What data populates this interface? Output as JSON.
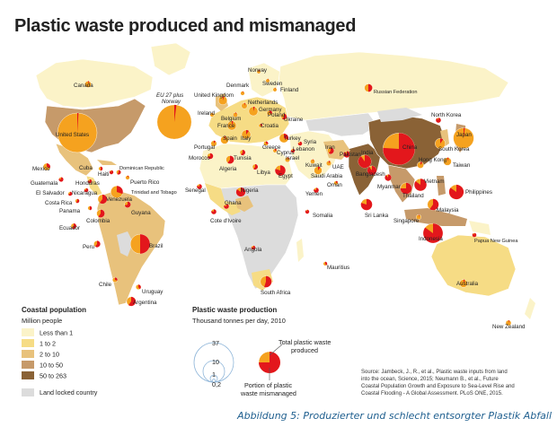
{
  "title": "Plastic waste produced and mismanaged",
  "caption": "Abbildung 5: Produzierter und schlecht entsorgter Plastik Abfall",
  "colors": {
    "less_than_1": "#fbf3c8",
    "one_to_2": "#f6dc85",
    "two_to_10": "#e8c27c",
    "ten_to_50": "#c69a6a",
    "fifty_to_263": "#8a6236",
    "land_locked": "#dcdcdc",
    "ocean": "#ffffff",
    "total_waste": "#f5a21f",
    "mismanaged": "#e3171c"
  },
  "legend": {
    "coastal_title": "Coastal population",
    "coastal_unit": "Million people",
    "items": [
      {
        "label": "Less than 1",
        "color_key": "less_than_1"
      },
      {
        "label": "1 to 2",
        "color_key": "one_to_2"
      },
      {
        "label": "2 to 10",
        "color_key": "two_to_10"
      },
      {
        "label": "10 to 50",
        "color_key": "ten_to_50"
      },
      {
        "label": "50 to 263",
        "color_key": "fifty_to_263"
      }
    ],
    "landlocked_label": "Land locked country",
    "waste_title": "Plastic waste production",
    "waste_unit": "Thousand tonnes per day, 2010",
    "scale_values": [
      "37",
      "10",
      "1",
      "0,2"
    ],
    "total_label_1": "Total plastic waste",
    "total_label_2": "produced",
    "portion_label_1": "Portion of plastic",
    "portion_label_2": "waste mismanaged"
  },
  "source": [
    "Source: Jambeck, J., R., et al., Plastic waste inputs from land",
    "into the ocean, Science, 2015; Neumann B., et al., Future",
    "Coastal Population Growth and Exposure to Sea-Level Rise and",
    "Coastal Flooding - A Global Assessment. PLoS ONE, 2015."
  ],
  "countries": [
    {
      "name": "Canada",
      "total": 1.0,
      "mismanaged": 0.05
    },
    {
      "name": "United States",
      "total": 37,
      "mismanaged": 0.01
    },
    {
      "name": "Mexico",
      "total": 1.2,
      "mismanaged": 0.3
    },
    {
      "name": "Cuba",
      "total": 0.4,
      "mismanaged": 0.5
    },
    {
      "name": "Haiti",
      "total": 0.3,
      "mismanaged": 0.9
    },
    {
      "name": "Dominican Republic",
      "total": 0.5,
      "mismanaged": 0.6
    },
    {
      "name": "Puerto Rico",
      "total": 0.4,
      "mismanaged": 0.1
    },
    {
      "name": "Guatemala",
      "total": 0.5,
      "mismanaged": 0.8
    },
    {
      "name": "Honduras",
      "total": 0.4,
      "mismanaged": 0.8
    },
    {
      "name": "El Salvador",
      "total": 0.3,
      "mismanaged": 0.7
    },
    {
      "name": "Nicaragua",
      "total": 0.4,
      "mismanaged": 0.8
    },
    {
      "name": "Costa Rica",
      "total": 0.4,
      "mismanaged": 0.6
    },
    {
      "name": "Panama",
      "total": 0.4,
      "mismanaged": 0.5
    },
    {
      "name": "Trinidad and Tobago",
      "total": 3.5,
      "mismanaged": 0.3
    },
    {
      "name": "Venezuela",
      "total": 2.0,
      "mismanaged": 0.6
    },
    {
      "name": "Guyana",
      "total": 0.9,
      "mismanaged": 0.7
    },
    {
      "name": "Colombia",
      "total": 1.5,
      "mismanaged": 0.6
    },
    {
      "name": "Ecuador",
      "total": 0.7,
      "mismanaged": 0.6
    },
    {
      "name": "Peru",
      "total": 1.0,
      "mismanaged": 0.6
    },
    {
      "name": "Brazil",
      "total": 9.0,
      "mismanaged": 0.5
    },
    {
      "name": "Chile",
      "total": 0.6,
      "mismanaged": 0.3
    },
    {
      "name": "Uruguay",
      "total": 0.6,
      "mismanaged": 0.4
    },
    {
      "name": "Argentina",
      "total": 2.0,
      "mismanaged": 0.6
    },
    {
      "name": "EU 27 plus Norway",
      "total": 28,
      "mismanaged": 0.02
    },
    {
      "name": "United Kingdom",
      "total": 1.8,
      "mismanaged": 0.05
    },
    {
      "name": "Ireland",
      "total": 0.4,
      "mismanaged": 0.05
    },
    {
      "name": "Denmark",
      "total": 0.4,
      "mismanaged": 0.05
    },
    {
      "name": "Norway",
      "total": 0.3,
      "mismanaged": 0.05
    },
    {
      "name": "Sweden",
      "total": 0.3,
      "mismanaged": 0.05
    },
    {
      "name": "Finland",
      "total": 0.3,
      "mismanaged": 0.05
    },
    {
      "name": "Netherlands",
      "total": 0.8,
      "mismanaged": 0.05
    },
    {
      "name": "Germany",
      "total": 2.0,
      "mismanaged": 0.05
    },
    {
      "name": "Belgium",
      "total": 0.6,
      "mismanaged": 0.05
    },
    {
      "name": "Poland",
      "total": 0.7,
      "mismanaged": 0.3
    },
    {
      "name": "France",
      "total": 2.0,
      "mismanaged": 0.05
    },
    {
      "name": "Spain",
      "total": 1.5,
      "mismanaged": 0.05
    },
    {
      "name": "Portugal",
      "total": 0.8,
      "mismanaged": 0.1
    },
    {
      "name": "Italy",
      "total": 2.0,
      "mismanaged": 0.1
    },
    {
      "name": "Croatia",
      "total": 0.3,
      "mismanaged": 0.3
    },
    {
      "name": "Ukraine",
      "total": 0.8,
      "mismanaged": 0.6
    },
    {
      "name": "Greece",
      "total": 0.5,
      "mismanaged": 0.3
    },
    {
      "name": "Turkey",
      "total": 2.0,
      "mismanaged": 0.3
    },
    {
      "name": "Cyprus",
      "total": 0.2,
      "mismanaged": 0.2
    },
    {
      "name": "Syria",
      "total": 0.4,
      "mismanaged": 0.8
    },
    {
      "name": "Lebanon",
      "total": 0.3,
      "mismanaged": 0.8
    },
    {
      "name": "Israel",
      "total": 0.6,
      "mismanaged": 0.1
    },
    {
      "name": "Morocco",
      "total": 0.8,
      "mismanaged": 0.7
    },
    {
      "name": "Algeria",
      "total": 1.5,
      "mismanaged": 0.6
    },
    {
      "name": "Tunisia",
      "total": 0.7,
      "mismanaged": 0.6
    },
    {
      "name": "Libya",
      "total": 0.7,
      "mismanaged": 0.6
    },
    {
      "name": "Egypt",
      "total": 2.5,
      "mismanaged": 0.8
    },
    {
      "name": "Russian Federation",
      "total": 1.5,
      "mismanaged": 0.5
    },
    {
      "name": "Iran",
      "total": 1.0,
      "mismanaged": 0.6
    },
    {
      "name": "Pakistan",
      "total": 1.0,
      "mismanaged": 0.9
    },
    {
      "name": "Kuwait",
      "total": 0.5,
      "mismanaged": 0.05
    },
    {
      "name": "UAE",
      "total": 0.6,
      "mismanaged": 0.1
    },
    {
      "name": "Saudi Arabia",
      "total": 1.5,
      "mismanaged": 0.1
    },
    {
      "name": "Oman",
      "total": 0.4,
      "mismanaged": 0.2
    },
    {
      "name": "Yemen",
      "total": 0.6,
      "mismanaged": 0.8
    },
    {
      "name": "India",
      "total": 4.0,
      "mismanaged": 0.9
    },
    {
      "name": "Bangladesh",
      "total": 2.0,
      "mismanaged": 0.9
    },
    {
      "name": "Myanmar",
      "total": 1.0,
      "mismanaged": 0.9
    },
    {
      "name": "Sri Lanka",
      "total": 3.0,
      "mismanaged": 0.8
    },
    {
      "name": "China",
      "total": 24,
      "mismanaged": 0.76
    },
    {
      "name": "North Korea",
      "total": 0.6,
      "mismanaged": 0.9
    },
    {
      "name": "South Korea",
      "total": 2.5,
      "mismanaged": 0.1
    },
    {
      "name": "Japan",
      "total": 10,
      "mismanaged": 0.02
    },
    {
      "name": "Taiwan",
      "total": 1.5,
      "mismanaged": 0.05
    },
    {
      "name": "Hong Kong",
      "total": 1.0,
      "mismanaged": 0.1
    },
    {
      "name": "Vietnam",
      "total": 3.5,
      "mismanaged": 0.85
    },
    {
      "name": "Thailand",
      "total": 3.0,
      "mismanaged": 0.75
    },
    {
      "name": "Philippines",
      "total": 5.0,
      "mismanaged": 0.85
    },
    {
      "name": "Malaysia",
      "total": 3.0,
      "mismanaged": 0.6
    },
    {
      "name": "Singapore",
      "total": 0.6,
      "mismanaged": 0.05
    },
    {
      "name": "Indonesia",
      "total": 9.0,
      "mismanaged": 0.85
    },
    {
      "name": "Papua New Guinea",
      "total": 0.4,
      "mismanaged": 0.9
    },
    {
      "name": "Australia",
      "total": 1.5,
      "mismanaged": 0.05
    },
    {
      "name": "New Zealand",
      "total": 0.7,
      "mismanaged": 0.05
    },
    {
      "name": "Senegal",
      "total": 0.6,
      "mismanaged": 0.8
    },
    {
      "name": "Cote d'Ivoire",
      "total": 0.6,
      "mismanaged": 0.8
    },
    {
      "name": "Ghana",
      "total": 0.6,
      "mismanaged": 0.8
    },
    {
      "name": "Nigeria",
      "total": 2.0,
      "mismanaged": 0.85
    },
    {
      "name": "Angola",
      "total": 0.4,
      "mismanaged": 0.8
    },
    {
      "name": "Somalia",
      "total": 0.3,
      "mismanaged": 0.9
    },
    {
      "name": "Mauritius",
      "total": 0.2,
      "mismanaged": 0.4
    },
    {
      "name": "South Africa",
      "total": 3.0,
      "mismanaged": 0.55
    }
  ]
}
